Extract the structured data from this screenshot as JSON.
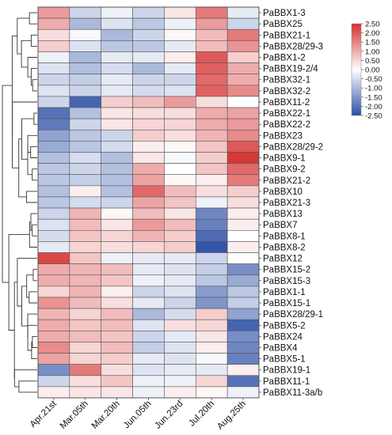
{
  "chart_data": {
    "type": "heatmap",
    "title": "",
    "xlabel": "",
    "ylabel": "",
    "columns": [
      "Apr.21st",
      "Mar.05th",
      "Mar.20th",
      "Jun.05th",
      "Jun.23rd",
      "Jul.20th",
      "Aug.25th"
    ],
    "rows": [
      "PaBBX1-3",
      "PaBBX25",
      "PaBBX21-1",
      "PaBBX28/29-3",
      "PaBBX1-2",
      "PaBBX19-2/4",
      "PaBBX32-1",
      "PaBBX32-2",
      "PaBBX11-2",
      "PaBBX22-1",
      "PaBBX22-2",
      "PaBBX23",
      "PaBBX28/29-2",
      "PaBBX9-1",
      "PaBBX9-2",
      "PaBBX21-2",
      "PaBBX10",
      "PaBBX21-3",
      "PaBBX13",
      "PaBBX7",
      "PaBBX8-1",
      "PaBBX8-2",
      "PaBBX12",
      "PaBBX15-2",
      "PaBBX15-3",
      "PaBBX1-1",
      "PaBBX15-1",
      "PaBBX28/29-1",
      "PaBBX5-2",
      "PaBBX24",
      "PaBBX4",
      "PaBBX5-1",
      "PaBBX19-1",
      "PaBBX11-1",
      "PaBBX11-3a/b"
    ],
    "values": [
      [
        1.2,
        -0.6,
        -0.2,
        -0.6,
        0.3,
        1.6,
        -0.3
      ],
      [
        1.0,
        -1.0,
        -0.4,
        -0.8,
        -0.2,
        1.2,
        -0.6
      ],
      [
        0.4,
        -0.1,
        -1.0,
        -0.6,
        0.1,
        0.8,
        1.6
      ],
      [
        0.6,
        -0.4,
        -0.8,
        -0.8,
        -0.3,
        0.8,
        1.3
      ],
      [
        -0.2,
        -1.0,
        -0.3,
        -0.3,
        0.2,
        2.0,
        0.6
      ],
      [
        -0.4,
        -0.9,
        -0.5,
        -1.0,
        -0.3,
        1.9,
        1.0
      ],
      [
        -0.6,
        -0.7,
        -0.3,
        -0.6,
        -0.6,
        1.8,
        1.0
      ],
      [
        -0.4,
        -0.6,
        -0.3,
        -0.5,
        -0.4,
        1.9,
        1.4
      ],
      [
        -0.6,
        -2.2,
        0.6,
        0.8,
        1.2,
        0.4,
        0.0
      ],
      [
        -2.0,
        -0.9,
        0.3,
        0.4,
        0.4,
        1.0,
        1.1
      ],
      [
        -1.9,
        -0.6,
        0.3,
        0.5,
        0.5,
        1.0,
        1.2
      ],
      [
        -1.3,
        -0.8,
        -0.6,
        0.6,
        0.4,
        0.9,
        1.4
      ],
      [
        -1.2,
        -0.8,
        -0.5,
        0.2,
        0.1,
        0.7,
        2.0
      ],
      [
        -0.9,
        -0.5,
        -0.9,
        0.3,
        -0.1,
        0.6,
        2.4
      ],
      [
        -0.8,
        -0.6,
        -0.9,
        1.0,
        0.0,
        0.7,
        1.8
      ],
      [
        -0.8,
        -0.7,
        -0.9,
        1.1,
        0.1,
        0.2,
        1.6
      ],
      [
        -0.9,
        0.2,
        -0.9,
        1.8,
        0.8,
        0.4,
        0.6
      ],
      [
        -0.8,
        -0.5,
        -0.6,
        1.1,
        0.7,
        -0.2,
        0.4
      ],
      [
        -0.6,
        0.9,
        0.1,
        0.8,
        0.3,
        -1.7,
        0.2
      ],
      [
        -0.4,
        0.8,
        0.3,
        1.2,
        0.8,
        -1.8,
        0.2
      ],
      [
        -0.5,
        0.7,
        0.5,
        0.9,
        0.6,
        -2.1,
        0.0
      ],
      [
        -0.3,
        0.5,
        0.4,
        0.5,
        0.6,
        -2.4,
        0.2
      ],
      [
        2.2,
        0.7,
        -0.2,
        -0.3,
        -0.3,
        -0.6,
        0.0
      ],
      [
        1.0,
        0.9,
        0.8,
        -0.3,
        -0.4,
        -0.7,
        -1.6
      ],
      [
        1.0,
        0.9,
        0.7,
        -0.2,
        -0.3,
        -0.8,
        -1.2
      ],
      [
        0.5,
        0.9,
        0.2,
        -0.6,
        -0.4,
        -1.4,
        -0.8
      ],
      [
        1.3,
        0.8,
        0.4,
        -0.3,
        -0.6,
        -1.5,
        -0.7
      ],
      [
        0.9,
        0.5,
        0.8,
        -1.0,
        -0.5,
        0.6,
        -1.3
      ],
      [
        1.0,
        0.7,
        0.8,
        -0.4,
        0.4,
        0.5,
        -2.2
      ],
      [
        1.0,
        0.8,
        0.7,
        -0.6,
        -0.3,
        0.3,
        -1.6
      ],
      [
        1.4,
        0.5,
        0.8,
        -0.7,
        -0.4,
        0.2,
        -1.7
      ],
      [
        1.1,
        0.5,
        0.6,
        -0.3,
        -0.4,
        -0.1,
        -1.8
      ],
      [
        -1.6,
        1.6,
        0.4,
        -0.4,
        -0.3,
        -0.3,
        0.2
      ],
      [
        -0.6,
        0.4,
        0.7,
        -0.2,
        -0.2,
        0.5,
        -2.0
      ],
      [
        0.2,
        0.3,
        0.3,
        -0.2,
        0.2,
        0.1,
        -0.2
      ]
    ],
    "color_scale": {
      "min": -2.5,
      "max": 2.5,
      "low_color": "#2c4fa6",
      "mid_color": "#ffffff",
      "high_color": "#d62f2f",
      "ticks": [
        "2.50",
        "2.00",
        "1.50",
        "1.00",
        "0.50",
        "0.00",
        "-0.50",
        "-1.00",
        "-1.50",
        "-2.00",
        "-2.50"
      ]
    },
    "legend_position": "top-right",
    "row_dendrogram": true,
    "grid": true
  }
}
